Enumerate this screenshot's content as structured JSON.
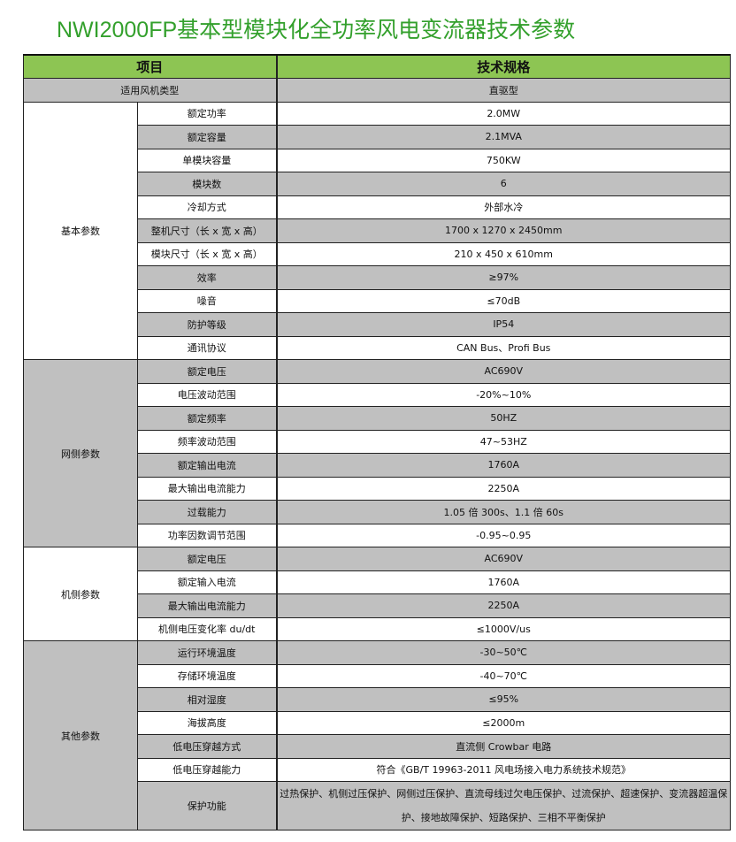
{
  "title": "NWI2000FP基本型模块化全功率风电变流器技术参数",
  "header": {
    "item": "项目",
    "spec": "技术规格"
  },
  "turbine_type": {
    "label": "适用风机类型",
    "value": "直驱型"
  },
  "groups": [
    {
      "name": "基本参数",
      "shaded": false,
      "rows": [
        {
          "label": "额定功率",
          "value": "2.0MW",
          "shaded": false
        },
        {
          "label": "额定容量",
          "value": "2.1MVA",
          "shaded": true
        },
        {
          "label": "单模块容量",
          "value": "750KW",
          "shaded": false
        },
        {
          "label": "模块数",
          "value": "6",
          "shaded": true
        },
        {
          "label": "冷却方式",
          "value": "外部水冷",
          "shaded": false
        },
        {
          "label": "整机尺寸（长 x 宽 x 高）",
          "value": "1700 x 1270 x 2450mm",
          "shaded": true
        },
        {
          "label": "模块尺寸（长 x 宽 x 高）",
          "value": "210 x 450 x 610mm",
          "shaded": false
        },
        {
          "label": "效率",
          "value": "≥97%",
          "shaded": true
        },
        {
          "label": "噪音",
          "value": "≤70dB",
          "shaded": false
        },
        {
          "label": "防护等级",
          "value": "IP54",
          "shaded": true
        },
        {
          "label": "通讯协议",
          "value": "CAN Bus、Profi Bus",
          "shaded": false
        }
      ]
    },
    {
      "name": "网侧参数",
      "shaded": true,
      "rows": [
        {
          "label": "额定电压",
          "value": "AC690V",
          "shaded": true
        },
        {
          "label": "电压波动范围",
          "value": "-20%~10%",
          "shaded": false
        },
        {
          "label": "额定频率",
          "value": "50HZ",
          "shaded": true
        },
        {
          "label": "频率波动范围",
          "value": "47~53HZ",
          "shaded": false
        },
        {
          "label": "额定输出电流",
          "value": "1760A",
          "shaded": true
        },
        {
          "label": "最大输出电流能力",
          "value": "2250A",
          "shaded": false
        },
        {
          "label": "过载能力",
          "value": "1.05 倍 300s、1.1 倍 60s",
          "shaded": true
        },
        {
          "label": "功率因数调节范围",
          "value": "-0.95~0.95",
          "shaded": false
        }
      ]
    },
    {
      "name": "机侧参数",
      "shaded": false,
      "rows": [
        {
          "label": "额定电压",
          "value": "AC690V",
          "shaded": true
        },
        {
          "label": "额定输入电流",
          "value": "1760A",
          "shaded": false
        },
        {
          "label": "最大输出电流能力",
          "value": "2250A",
          "shaded": true
        },
        {
          "label": "机侧电压变化率 du/dt",
          "value": "≤1000V/us",
          "shaded": false
        }
      ]
    },
    {
      "name": "其他参数",
      "shaded": true,
      "rows": [
        {
          "label": "运行环境温度",
          "value": "-30~50℃",
          "shaded": true
        },
        {
          "label": "存储环境温度",
          "value": "-40~70℃",
          "shaded": false
        },
        {
          "label": "相对湿度",
          "value": "≤95%",
          "shaded": true
        },
        {
          "label": "海拔高度",
          "value": "≤2000m",
          "shaded": false
        },
        {
          "label": "低电压穿越方式",
          "value": "直流侧 Crowbar 电路",
          "shaded": true
        },
        {
          "label": "低电压穿越能力",
          "value": "符合《GB/T 19963-2011 风电场接入电力系统技术规范》",
          "shaded": false
        },
        {
          "label": "保护功能",
          "value": "过热保护、机侧过压保护、网侧过压保护、直流母线过欠电压保护、过流保护、超速保护、变流器超温保护、接地故障保护、短路保护、三相不平衡保护",
          "shaded": true,
          "multiline": true
        }
      ]
    }
  ]
}
